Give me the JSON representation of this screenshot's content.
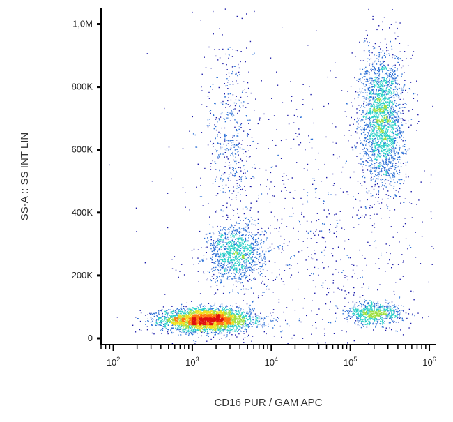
{
  "chart_data": {
    "type": "scatter",
    "title": "",
    "xlabel": "CD16 PUR / GAM APC",
    "ylabel": "SS-A :: SS INT LIN",
    "x_scale": "log",
    "xlim": [
      70,
      1200000
    ],
    "ylim": [
      -20000,
      1050000
    ],
    "x_ticks": [
      {
        "value": 100,
        "base": "10",
        "exp": "2"
      },
      {
        "value": 1000,
        "base": "10",
        "exp": "3"
      },
      {
        "value": 10000,
        "base": "10",
        "exp": "4"
      },
      {
        "value": 100000,
        "base": "10",
        "exp": "5"
      },
      {
        "value": 1000000,
        "base": "10",
        "exp": "6"
      }
    ],
    "y_ticks": [
      {
        "value": 0,
        "label": "0"
      },
      {
        "value": 200000,
        "label": "200K"
      },
      {
        "value": 400000,
        "label": "400K"
      },
      {
        "value": 600000,
        "label": "600K"
      },
      {
        "value": 800000,
        "label": "800K"
      },
      {
        "value": 1000000,
        "label": "1,0M"
      }
    ],
    "grid": false,
    "density_colors": [
      "#1a1aa8",
      "#2b6fd6",
      "#2bd0c8",
      "#9fe040",
      "#f0e020",
      "#ff7a10",
      "#e01010"
    ],
    "populations": [
      {
        "x": 1500,
        "y": 60000,
        "weight": 0.4,
        "spread_x": 0.28,
        "spread_y": 18000
      },
      {
        "x": 3500,
        "y": 270000,
        "weight": 0.12,
        "spread_x": 0.18,
        "spread_y": 45000
      },
      {
        "x": 3000,
        "y": 650000,
        "weight": 0.05,
        "spread_x": 0.15,
        "spread_y": 180000
      },
      {
        "x": 250000,
        "y": 700000,
        "weight": 0.25,
        "spread_x": 0.14,
        "spread_y": 110000
      },
      {
        "x": 200000,
        "y": 80000,
        "weight": 0.08,
        "spread_x": 0.18,
        "spread_y": 18000
      },
      {
        "x": 30000,
        "y": 300000,
        "weight": 0.1,
        "spread_x": 0.8,
        "spread_y": 250000
      }
    ]
  }
}
